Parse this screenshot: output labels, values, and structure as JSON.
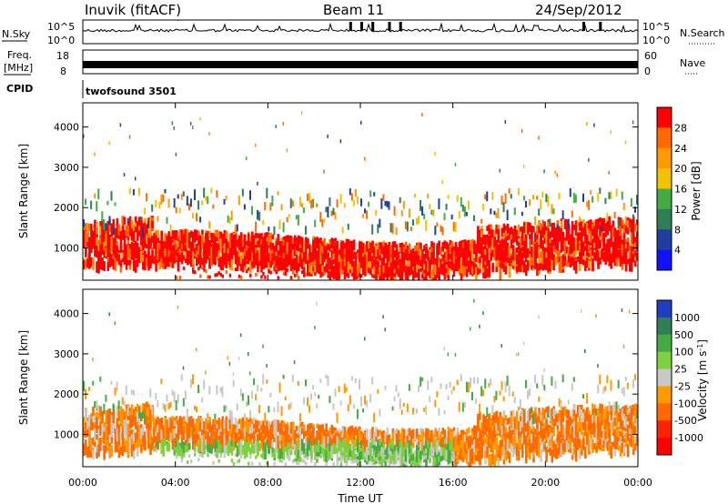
{
  "header": {
    "station": "Inuvik (fitACF)",
    "beam": "Beam 11",
    "date": "24/Sep/2012"
  },
  "side_labels": {
    "nsky": "N.Sky",
    "freq_line1": "Freq.",
    "freq_line2": "[MHz]",
    "cpid": "CPID",
    "nsearch": "N.Search",
    "nave": "Nave",
    "nsky_top": "10^5",
    "nsky_bottom": "10^0",
    "nsearch_top": "10^5",
    "nsearch_bottom": "10^0",
    "freq_top": "18",
    "freq_bottom": "8",
    "nave_top": "60",
    "nave_bottom": "0"
  },
  "cpid_text": "twofsound 3501",
  "chart_data": [
    {
      "type": "heatmap",
      "panel": "power",
      "ylabel": "Slant Range [km]",
      "ylim": [
        200,
        4600
      ],
      "yticks": [
        "1000",
        "2000",
        "3000",
        "4000"
      ],
      "colorbar_label": "Power [dB]",
      "colorbar_ticks": [
        "28",
        "24",
        "20",
        "16",
        "12",
        "8",
        "4"
      ],
      "colorbar_colors": [
        "#ff0000",
        "#ff6a00",
        "#ff9900",
        "#f2c200",
        "#44aa44",
        "#2f7f55",
        "#1f3f9f",
        "#1111ff"
      ],
      "grid": false,
      "scatter_bands": [
        {
          "start_hour": 0,
          "end_hour": 24,
          "range_low": 600,
          "range_high": 1400,
          "dominant": "red"
        },
        {
          "start_hour": 0,
          "end_hour": 3,
          "range_low": 1200,
          "range_high": 2300,
          "dominant": "red"
        },
        {
          "start_hour": 17,
          "end_hour": 24,
          "range_low": 1000,
          "range_high": 1800,
          "dominant": "red"
        }
      ]
    },
    {
      "type": "heatmap",
      "panel": "velocity",
      "ylabel": "Slant Range [km]",
      "ylim": [
        200,
        4600
      ],
      "yticks": [
        "1000",
        "2000",
        "3000",
        "4000"
      ],
      "colorbar_label": "Velocity [m s^-1]",
      "colorbar_ticks": [
        "1000",
        "500",
        "100",
        "25",
        "-25",
        "-100",
        "-500",
        "-1000"
      ],
      "colorbar_colors": [
        "#1f3fbf",
        "#2f7f55",
        "#44aa44",
        "#7fd040",
        "#c8c8c4",
        "#ff9900",
        "#ff6a00",
        "#ff2200",
        "#ff0000"
      ],
      "grid": false,
      "xlabel": "Time UT",
      "xticks": [
        "00:00",
        "04:00",
        "08:00",
        "12:00",
        "16:00",
        "20:00",
        "00:00"
      ],
      "xlim_hours": [
        0,
        24
      ]
    }
  ]
}
